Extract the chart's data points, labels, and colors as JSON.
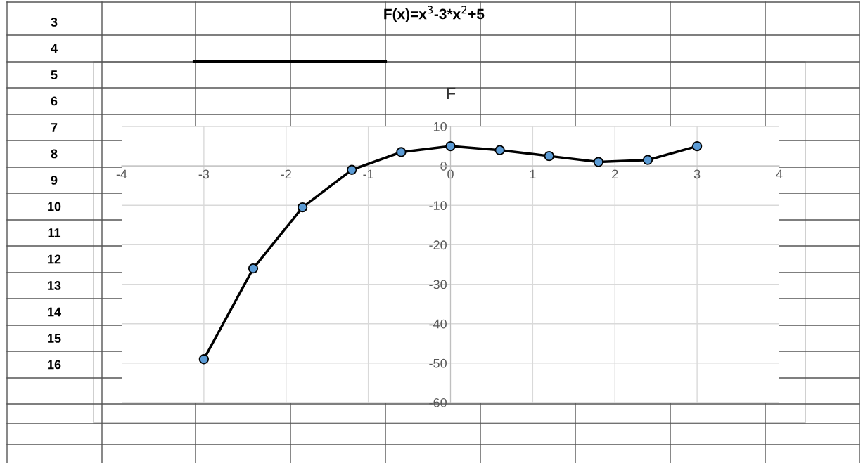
{
  "chart_data": {
    "type": "line",
    "title": "F(x)=x$^{3}$-3*x$^{2}$+5",
    "subtitle": "F",
    "annotations": [
      "3",
      "4",
      "5",
      "6",
      "7",
      "8",
      "9",
      "10",
      "11",
      "12",
      "13",
      "14",
      "15",
      "16"
    ],
    "x": [
      -3,
      -2.4,
      -1.8,
      -1.2,
      -0.6,
      0,
      0.6,
      1.2,
      1.8,
      2.4,
      3
    ],
    "series": [
      {
        "color": "#5b9bd5",
        "values": [
          -49,
          -26,
          -10.5,
          -1,
          3.5,
          5,
          4,
          2.5,
          1,
          1.5,
          5
        ]
      }
    ],
    "xlim": [
      -4,
      4
    ],
    "xticks": [
      -4,
      -3,
      -2,
      -1,
      0,
      1,
      2,
      3,
      4
    ],
    "ylim": [
      -60,
      10
    ],
    "yticks": [
      -60,
      -50,
      -40,
      -30,
      -20,
      -10,
      0,
      10
    ],
    "grid": true,
    "marker": "circle",
    "line_style": "solid"
  }
}
